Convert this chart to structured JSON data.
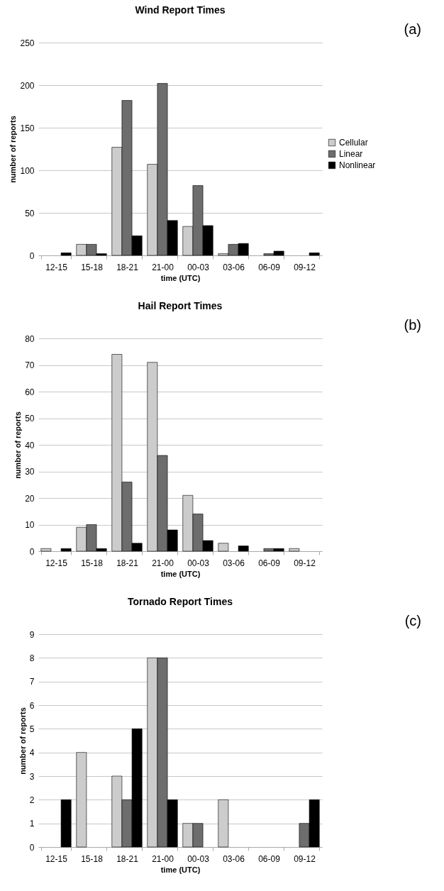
{
  "chart_data": [
    {
      "type": "bar",
      "title": "Wind Report Times",
      "xlabel": "time (UTC)",
      "ylabel": "number of reports",
      "annotations": [
        "(a)"
      ],
      "categories": [
        "12-15",
        "15-18",
        "18-21",
        "21-00",
        "00-03",
        "03-06",
        "06-09",
        "09-12"
      ],
      "series": [
        {
          "name": "Cellular",
          "color": "#cccccc",
          "values": [
            0,
            13,
            127,
            107,
            34,
            2,
            0,
            0
          ]
        },
        {
          "name": "Linear",
          "color": "#6d6d6d",
          "values": [
            0,
            13,
            182,
            202,
            82,
            13,
            2,
            0
          ]
        },
        {
          "name": "Nonlinear",
          "color": "#000000",
          "values": [
            3,
            2,
            23,
            41,
            35,
            14,
            5,
            3
          ]
        }
      ],
      "ylim": [
        0,
        250
      ],
      "yticks": [
        0,
        50,
        100,
        150,
        200,
        250
      ],
      "grid": "y",
      "legend": "right"
    },
    {
      "type": "bar",
      "title": "Hail Report Times",
      "xlabel": "time (UTC)",
      "ylabel": "number of reports",
      "annotations": [
        "(b)"
      ],
      "categories": [
        "12-15",
        "15-18",
        "18-21",
        "21-00",
        "00-03",
        "03-06",
        "06-09",
        "09-12"
      ],
      "series": [
        {
          "name": "Cellular",
          "color": "#cccccc",
          "values": [
            1,
            9,
            74,
            71,
            21,
            3,
            0,
            1
          ]
        },
        {
          "name": "Linear",
          "color": "#6d6d6d",
          "values": [
            0,
            10,
            26,
            36,
            14,
            0,
            1,
            0
          ]
        },
        {
          "name": "Nonlinear",
          "color": "#000000",
          "values": [
            1,
            1,
            3,
            8,
            4,
            2,
            1,
            0
          ]
        }
      ],
      "ylim": [
        0,
        80
      ],
      "yticks": [
        0,
        10,
        20,
        30,
        40,
        50,
        60,
        70,
        80
      ],
      "grid": "y",
      "legend": "right"
    },
    {
      "type": "bar",
      "title": "Tornado Report Times",
      "xlabel": "time (UTC)",
      "ylabel": "number of reports",
      "annotations": [
        "(c)"
      ],
      "categories": [
        "12-15",
        "15-18",
        "18-21",
        "21-00",
        "00-03",
        "03-06",
        "06-09",
        "09-12"
      ],
      "series": [
        {
          "name": "Cellular",
          "color": "#cccccc",
          "values": [
            0,
            4,
            3,
            8,
            1,
            2,
            0,
            0
          ]
        },
        {
          "name": "Linear",
          "color": "#6d6d6d",
          "values": [
            0,
            0,
            2,
            8,
            1,
            0,
            0,
            1
          ]
        },
        {
          "name": "Nonlinear",
          "color": "#000000",
          "values": [
            2,
            0,
            5,
            2,
            0,
            0,
            0,
            2
          ]
        }
      ],
      "ylim": [
        0,
        9
      ],
      "yticks": [
        0,
        1,
        2,
        3,
        4,
        5,
        6,
        7,
        8,
        9
      ],
      "grid": "y",
      "legend": "right"
    }
  ]
}
